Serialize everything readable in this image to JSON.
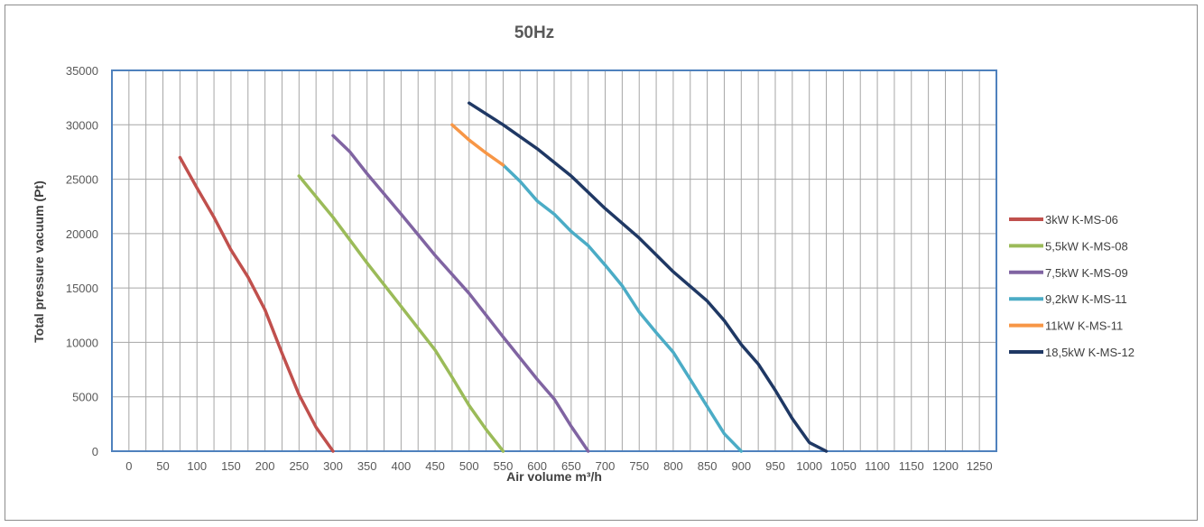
{
  "chart_data": {
    "type": "line",
    "title": "50Hz",
    "xlabel": "Air volume m³/h",
    "ylabel": "Total pressure vacuum (Pt)",
    "xlim": [
      -25,
      1275
    ],
    "ylim": [
      0,
      35000
    ],
    "x_ticks": [
      0,
      50,
      100,
      150,
      200,
      250,
      300,
      350,
      400,
      450,
      500,
      550,
      600,
      650,
      700,
      750,
      800,
      850,
      900,
      950,
      1000,
      1050,
      1100,
      1150,
      1200,
      1250
    ],
    "y_ticks": [
      0,
      5000,
      10000,
      15000,
      20000,
      25000,
      30000,
      35000
    ],
    "grid": true,
    "legend_position": "right",
    "series": [
      {
        "name": "3kW K-MS-06",
        "color": "#c0504d",
        "x": [
          75,
          100,
          125,
          150,
          175,
          200,
          225,
          250,
          275,
          300
        ],
        "y": [
          27000,
          24200,
          21500,
          18500,
          16000,
          13000,
          9000,
          5200,
          2200,
          0
        ]
      },
      {
        "name": "5,5kW K-MS-08",
        "color": "#9bbb59",
        "x": [
          250,
          300,
          350,
          400,
          450,
          475,
          500,
          525,
          550
        ],
        "y": [
          25300,
          21500,
          17300,
          13300,
          9300,
          6800,
          4200,
          2000,
          0
        ]
      },
      {
        "name": "7,5kW K-MS-09",
        "color": "#8064a2",
        "x": [
          300,
          325,
          350,
          400,
          450,
          500,
          550,
          600,
          625,
          650,
          675
        ],
        "y": [
          29000,
          27500,
          25500,
          21800,
          18000,
          14500,
          10500,
          6600,
          4800,
          2300,
          0
        ]
      },
      {
        "name": "9,2kW K-MS-11",
        "color": "#4bacc6",
        "x": [
          550,
          575,
          600,
          625,
          650,
          675,
          700,
          725,
          750,
          775,
          800,
          825,
          850,
          875,
          900
        ],
        "y": [
          26300,
          24800,
          23000,
          21800,
          20200,
          18900,
          17100,
          15200,
          12800,
          10900,
          9100,
          6600,
          4100,
          1600,
          0
        ]
      },
      {
        "name": "11kW K-MS-11",
        "color": "#f79646",
        "x": [
          475,
          500,
          525,
          550
        ],
        "y": [
          30000,
          28600,
          27400,
          26300
        ]
      },
      {
        "name": "18,5kW K-MS-12",
        "color": "#1f3864",
        "x": [
          500,
          550,
          600,
          650,
          700,
          750,
          800,
          850,
          875,
          900,
          925,
          950,
          975,
          1000,
          1025
        ],
        "y": [
          32000,
          30000,
          27800,
          25300,
          22300,
          19600,
          16500,
          13800,
          12000,
          9800,
          8000,
          5600,
          3000,
          800,
          0
        ]
      }
    ]
  }
}
